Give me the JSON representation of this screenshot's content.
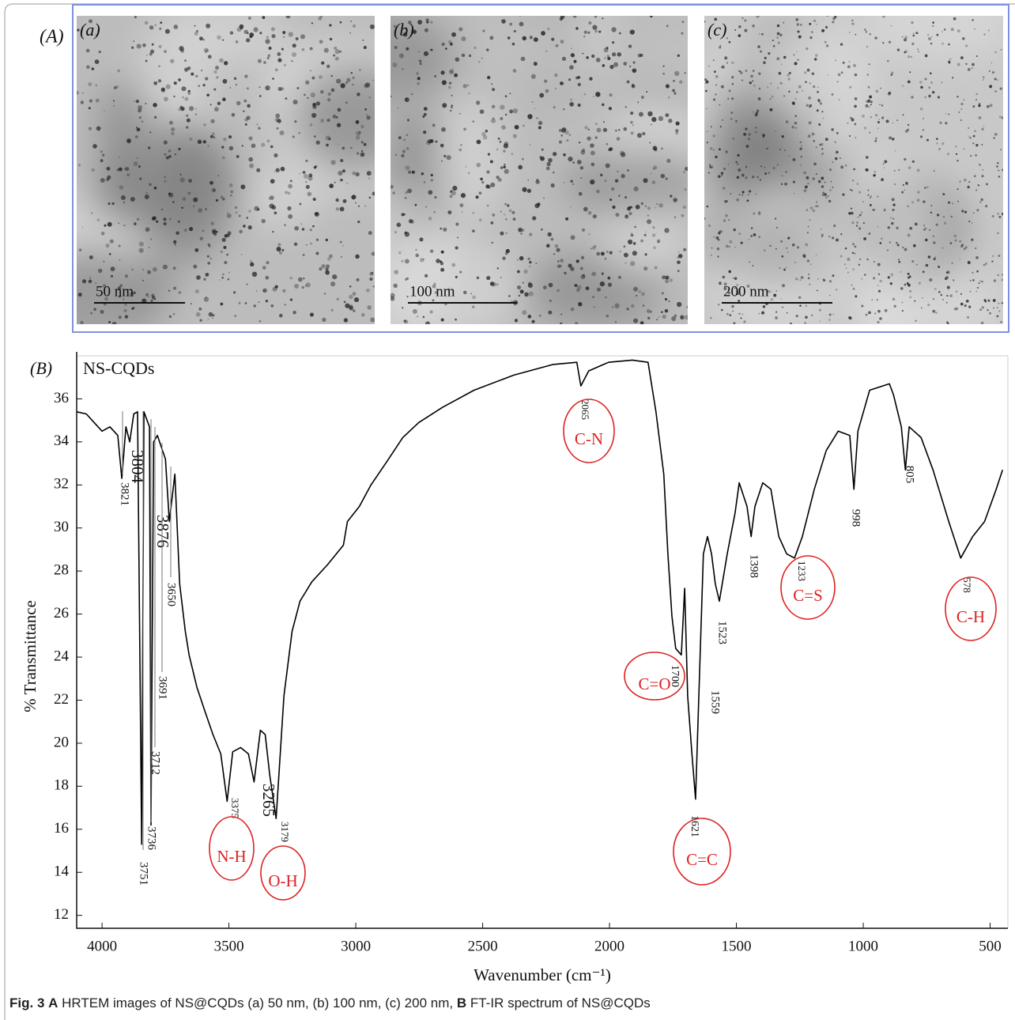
{
  "panel_a": {
    "label": "(A)",
    "images": [
      {
        "label": "(a)",
        "scale_bar": "50 nm"
      },
      {
        "label": "(b)",
        "scale_bar": "100 nm"
      },
      {
        "label": "(c)",
        "scale_bar": "200 nm"
      }
    ]
  },
  "chart_data": {
    "type": "line",
    "panel_label": "(B)",
    "xlabel": "Wavenumber (cm⁻¹)",
    "ylabel": "% Transmittance",
    "xlim": [
      4100,
      430
    ],
    "ylim": [
      11.4,
      38
    ],
    "xticks": [
      4000,
      3500,
      3000,
      2500,
      2000,
      1500,
      1000,
      500
    ],
    "yticks": [
      12,
      14,
      16,
      18,
      20,
      22,
      24,
      26,
      28,
      30,
      32,
      34,
      36
    ],
    "grid": false,
    "series": [
      {
        "name": "NS-CQDs",
        "color": "#000000",
        "x": [
          4100,
          4062,
          4031,
          4000,
          3969,
          3938,
          3922,
          3906,
          3891,
          3875,
          3860,
          3844,
          3835,
          3813,
          3807,
          3797,
          3782,
          3750,
          3735,
          3713,
          3694,
          3672,
          3657,
          3626,
          3595,
          3563,
          3532,
          3507,
          3485,
          3454,
          3423,
          3401,
          3376,
          3357,
          3339,
          3314,
          3283,
          3251,
          3220,
          3173,
          3111,
          3049,
          3033,
          2986,
          2940,
          2877,
          2815,
          2752,
          2659,
          2534,
          2378,
          2222,
          2129,
          2113,
          2082,
          2004,
          1910,
          1848,
          1817,
          1786,
          1770,
          1754,
          1739,
          1717,
          1704,
          1692,
          1676,
          1661,
          1645,
          1630,
          1614,
          1598,
          1583,
          1567,
          1536,
          1505,
          1489,
          1458,
          1442,
          1427,
          1396,
          1364,
          1333,
          1302,
          1271,
          1240,
          1193,
          1146,
          1099,
          1053,
          1037,
          1021,
          975,
          897,
          881,
          850,
          834,
          819,
          772,
          725,
          663,
          616,
          569,
          522,
          476,
          451
        ],
        "values": [
          35.4,
          35.3,
          34.9,
          34.5,
          34.7,
          34.3,
          32.3,
          34.7,
          34.0,
          35.3,
          35.4,
          15.3,
          35.4,
          34.7,
          16.2,
          34.0,
          34.3,
          33.2,
          30.3,
          32.5,
          27.4,
          25.2,
          24.1,
          22.6,
          21.5,
          20.4,
          19.5,
          17.3,
          19.6,
          19.8,
          19.5,
          18.2,
          20.6,
          20.4,
          18.5,
          16.5,
          22.2,
          25.2,
          26.6,
          27.5,
          28.3,
          29.2,
          30.3,
          31.0,
          32.0,
          33.1,
          34.2,
          34.9,
          35.6,
          36.4,
          37.1,
          37.6,
          37.7,
          36.6,
          37.3,
          37.7,
          37.8,
          37.7,
          35.4,
          32.5,
          28.8,
          25.9,
          24.4,
          24.1,
          27.2,
          22.2,
          19.6,
          17.4,
          23.3,
          28.8,
          29.6,
          28.8,
          27.4,
          26.6,
          28.8,
          30.7,
          32.1,
          31.0,
          29.6,
          31.0,
          32.1,
          31.8,
          29.6,
          28.8,
          28.6,
          29.6,
          31.8,
          33.6,
          34.5,
          34.3,
          31.8,
          34.5,
          36.4,
          36.7,
          36.2,
          34.7,
          32.7,
          34.7,
          34.2,
          32.7,
          30.3,
          28.6,
          29.6,
          30.3,
          31.8,
          32.7
        ]
      }
    ],
    "peak_labels": [
      3821,
      3804,
      3876,
      3751,
      3736,
      3712,
      3691,
      3650,
      3375,
      3265,
      3179,
      2065,
      1700,
      1621,
      1559,
      1523,
      1398,
      1233,
      998,
      805,
      578
    ],
    "group_labels": [
      "N-H",
      "O-H",
      "C-N",
      "C=O",
      "C=C",
      "C=S",
      "C-H"
    ]
  },
  "caption": {
    "figure": "Fig. 3",
    "panel_a": "A",
    "text_a": " HRTEM images of NS@CQDs (a) 50 nm, (b) 100 nm, (c) 200 nm, ",
    "panel_b": "B",
    "text_b": " FT-IR spectrum of NS@CQDs"
  }
}
